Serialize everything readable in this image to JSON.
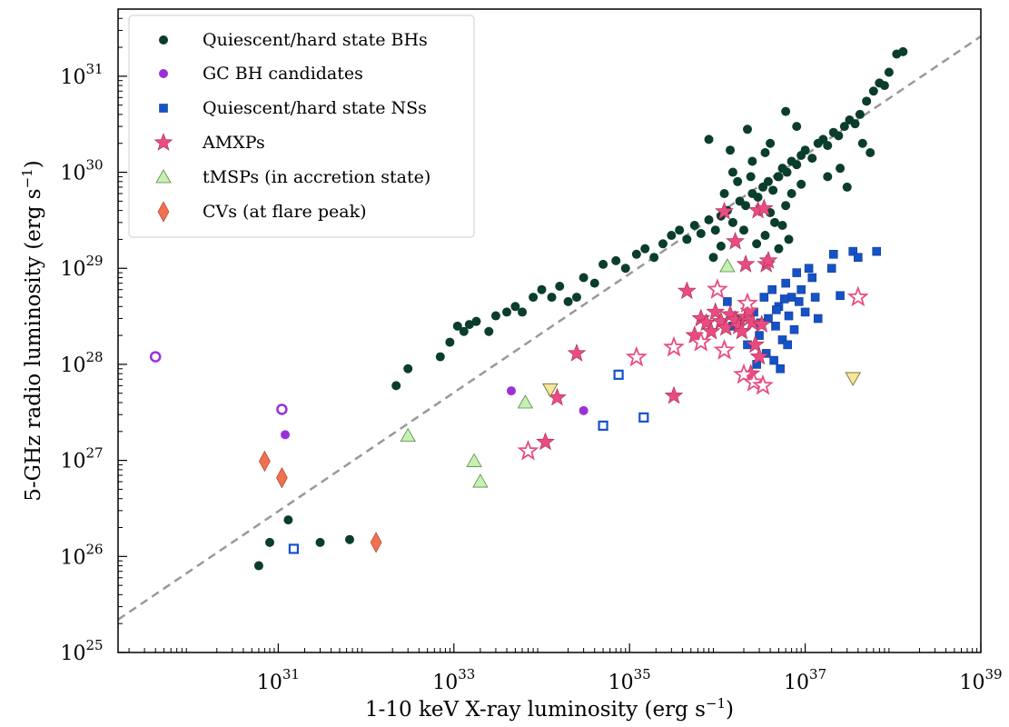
{
  "chart_data": {
    "type": "scatter",
    "title": "",
    "xlabel": "1-10 keV X-ray luminosity (erg s",
    "xlabel_sup": "−1",
    "xlabel_close": ")",
    "ylabel": "5-GHz radio luminosity (erg s",
    "ylabel_sup": "−1",
    "ylabel_close": ")",
    "xscale": "log",
    "yscale": "log",
    "xlim": [
      1.5e+29,
      1e+39
    ],
    "ylim": [
      1e+25,
      5e+31
    ],
    "x_ticks": [
      {
        "value": 1e+31,
        "base": "10",
        "exp": "31"
      },
      {
        "value": 1e+33,
        "base": "10",
        "exp": "33"
      },
      {
        "value": 1e+35,
        "base": "10",
        "exp": "35"
      },
      {
        "value": 1e+37,
        "base": "10",
        "exp": "37"
      },
      {
        "value": 1e+39,
        "base": "10",
        "exp": "39"
      }
    ],
    "y_ticks": [
      {
        "value": 1e+25,
        "base": "10",
        "exp": "25"
      },
      {
        "value": 1e+26,
        "base": "10",
        "exp": "26"
      },
      {
        "value": 1e+27,
        "base": "10",
        "exp": "27"
      },
      {
        "value": 1e+28,
        "base": "10",
        "exp": "28"
      },
      {
        "value": 1e+29,
        "base": "10",
        "exp": "29"
      },
      {
        "value": 1e+30,
        "base": "10",
        "exp": "30"
      },
      {
        "value": 1e+31,
        "base": "10",
        "exp": "31"
      }
    ],
    "grid": false,
    "legend_position": "top-left",
    "reference_line": {
      "style": "dashed",
      "color": "#999999",
      "points": [
        [
          1.5e+29,
          2.2e+25
        ],
        [
          1e+39,
          2.6e+31
        ]
      ]
    },
    "series": [
      {
        "name": "Quiescent/hard state BHs",
        "marker": "circle",
        "color": "#0b3d2e",
        "points": [
          [
            2.2e+32,
            6e+27
          ],
          [
            3e+32,
            9e+27
          ],
          [
            7e+32,
            1.2e+28
          ],
          [
            9e+32,
            1.7e+28
          ],
          [
            1.1e+33,
            2.5e+28
          ],
          [
            1.3e+33,
            2.2e+28
          ],
          [
            1.5e+33,
            2.6e+28
          ],
          [
            1.8e+33,
            2.8e+28
          ],
          [
            2.5e+33,
            2.2e+28
          ],
          [
            3e+33,
            3.2e+28
          ],
          [
            4e+33,
            3.5e+28
          ],
          [
            5e+33,
            4e+28
          ],
          [
            6e+33,
            3.5e+28
          ],
          [
            8e+33,
            5e+28
          ],
          [
            1e+34,
            6e+28
          ],
          [
            1.3e+34,
            5e+28
          ],
          [
            1.6e+34,
            6.5e+28
          ],
          [
            2e+34,
            4.5e+28
          ],
          [
            2.5e+34,
            5e+28
          ],
          [
            3e+34,
            8e+28
          ],
          [
            4e+34,
            7e+28
          ],
          [
            5e+34,
            1.1e+29
          ],
          [
            7e+34,
            1.2e+29
          ],
          [
            9e+34,
            1e+29
          ],
          [
            1.2e+35,
            1.4e+29
          ],
          [
            1.5e+35,
            1.6e+29
          ],
          [
            1.9e+35,
            1.3e+29
          ],
          [
            2.4e+35,
            1.8e+29
          ],
          [
            3e+35,
            2.2e+29
          ],
          [
            3.7e+35,
            2.5e+29
          ],
          [
            4.5e+35,
            2e+29
          ],
          [
            5.5e+35,
            2.8e+29
          ],
          [
            6.5e+35,
            2.3e+29
          ],
          [
            8e+35,
            3.2e+29
          ],
          [
            9.5e+35,
            2.5e+29
          ],
          [
            1.1e+36,
            3.5e+29
          ],
          [
            1.3e+36,
            4e+29
          ],
          [
            1.5e+36,
            3e+29
          ],
          [
            1.8e+36,
            5e+29
          ],
          [
            2.1e+36,
            4.5e+29
          ],
          [
            2.5e+36,
            6e+29
          ],
          [
            2.9e+36,
            5.5e+29
          ],
          [
            3.3e+36,
            7e+29
          ],
          [
            3.8e+36,
            8e+29
          ],
          [
            4.3e+36,
            6.5e+29
          ],
          [
            4.9e+36,
            9e+29
          ],
          [
            5.5e+36,
            1.1e+30
          ],
          [
            6.2e+36,
            1e+30
          ],
          [
            7e+36,
            1.3e+30
          ],
          [
            8e+36,
            1.2e+30
          ],
          [
            9e+36,
            1.5e+30
          ],
          [
            1e+37,
            1.7e+30
          ],
          [
            1.2e+37,
            1.4e+30
          ],
          [
            1.4e+37,
            2e+30
          ],
          [
            1.6e+37,
            2.2e+30
          ],
          [
            1.8e+37,
            1.9e+30
          ],
          [
            2.1e+37,
            2.6e+30
          ],
          [
            2.4e+37,
            2.4e+30
          ],
          [
            2.8e+37,
            3e+30
          ],
          [
            3.2e+37,
            3.5e+30
          ],
          [
            3.7e+37,
            3.2e+30
          ],
          [
            4.2e+37,
            4e+30
          ],
          [
            5e+37,
            5.5e+30
          ],
          [
            6e+37,
            7e+30
          ],
          [
            7e+37,
            8.5e+30
          ],
          [
            8e+37,
            8e+30
          ],
          [
            9e+37,
            1.1e+31
          ],
          [
            1.1e+38,
            1.7e+31
          ],
          [
            1.3e+38,
            1.8e+31
          ],
          [
            8e+35,
            2.2e+30
          ],
          [
            1.4e+36,
            1.7e+30
          ],
          [
            2.2e+36,
            2.8e+30
          ],
          [
            3.5e+36,
            1.6e+30
          ],
          [
            6e+36,
            4.3e+30
          ],
          [
            8e+36,
            3e+30
          ],
          [
            1.5e+36,
            1e+30
          ],
          [
            2.5e+36,
            1.3e+30
          ],
          [
            4e+36,
            2e+30
          ],
          [
            5e+36,
            9e+29
          ],
          [
            7e+36,
            6e+29
          ],
          [
            9e+36,
            7.5e+29
          ],
          [
            3e+36,
            4e+29
          ],
          [
            4.5e+36,
            3e+29
          ],
          [
            6e+36,
            4.5e+29
          ],
          [
            2e+36,
            2.5e+29
          ],
          [
            2.8e+36,
            1.8e+29
          ],
          [
            3.5e+36,
            2.2e+29
          ],
          [
            5e+36,
            1.6e+29
          ],
          [
            6.5e+36,
            2e+29
          ],
          [
            1.8e+37,
            9e+29
          ],
          [
            2.5e+37,
            1.1e+30
          ],
          [
            3e+37,
            7e+29
          ],
          [
            4.5e+37,
            2e+30
          ],
          [
            5.5e+37,
            1.6e+30
          ],
          [
            1.2e+36,
            6e+29
          ],
          [
            1.7e+36,
            8e+29
          ],
          [
            2.4e+36,
            9e+29
          ],
          [
            9e+35,
            1.3e+29
          ],
          [
            1.1e+36,
            1.7e+29
          ],
          [
            5.5e+36,
            2.8e+29
          ],
          [
            4e+36,
            3.8e+29
          ],
          [
            3e+31,
            1.4e+26
          ],
          [
            8e+30,
            1.4e+26
          ],
          [
            6.5e+31,
            1.5e+26
          ],
          [
            1.3e+31,
            2.4e+26
          ],
          [
            6e+30,
            8e+25
          ]
        ]
      },
      {
        "name": "GC BH candidates",
        "marker": "circle",
        "color": "#9b30d9",
        "points": [
          [
            4.5e+33,
            5.3e+27
          ],
          [
            3e+34,
            3.3e+27
          ],
          [
            1.2e+31,
            1.85e+27
          ]
        ],
        "open_points": [
          [
            4e+29,
            1.2e+28
          ],
          [
            1.1e+31,
            3.4e+27
          ]
        ]
      },
      {
        "name": "Quiescent/hard state NSs",
        "marker": "square",
        "color": "#1452c8",
        "points": [
          [
            1.3e+36,
            4.5e+28
          ],
          [
            1.5e+36,
            2.5e+28
          ],
          [
            1.8e+36,
            3e+28
          ],
          [
            2.2e+36,
            1.6e+28
          ],
          [
            2.6e+36,
            3.5e+28
          ],
          [
            3e+36,
            2e+28
          ],
          [
            3.4e+36,
            5e+28
          ],
          [
            3.8e+36,
            3e+28
          ],
          [
            4.2e+36,
            6e+28
          ],
          [
            4.6e+36,
            2.5e+28
          ],
          [
            5e+36,
            4e+28
          ],
          [
            5.5e+36,
            1.8e+28
          ],
          [
            6e+36,
            7e+28
          ],
          [
            6.5e+36,
            3.2e+28
          ],
          [
            7e+36,
            5e+28
          ],
          [
            7.5e+36,
            2.3e+28
          ],
          [
            8e+36,
            9e+28
          ],
          [
            8.5e+36,
            4.5e+28
          ],
          [
            9e+36,
            6e+28
          ],
          [
            1e+37,
            3.5e+28
          ],
          [
            1.1e+37,
            1e+29
          ],
          [
            1.2e+37,
            8e+28
          ],
          [
            1.3e+37,
            5e+28
          ],
          [
            1.4e+37,
            3e+28
          ],
          [
            2e+37,
            1e+29
          ],
          [
            2.1e+37,
            1.4e+29
          ],
          [
            2.5e+37,
            5.2e+28
          ],
          [
            3.5e+37,
            1.5e+29
          ],
          [
            4e+37,
            1.3e+29
          ],
          [
            6.5e+37,
            1.5e+29
          ],
          [
            2.8e+36,
            1e+28
          ],
          [
            3.6e+36,
            1.3e+28
          ],
          [
            4.4e+36,
            1.1e+28
          ],
          [
            5.2e+36,
            9e+27
          ],
          [
            6.3e+36,
            1.6e+28
          ],
          [
            3.1e+36,
            2.7e+28
          ],
          [
            4.7e+36,
            3.7e+28
          ],
          [
            5.8e+36,
            4.8e+28
          ]
        ],
        "open_points": [
          [
            1.5e+31,
            1.2e+26
          ],
          [
            5e+34,
            2.3e+27
          ],
          [
            7.5e+34,
            7.8e+27
          ],
          [
            1.45e+35,
            2.8e+27
          ]
        ]
      },
      {
        "name": "AMXPs",
        "marker": "star",
        "color": "#ea4b82",
        "points": [
          [
            2.5e+34,
            1.3e+28
          ],
          [
            1.5e+34,
            4.5e+27
          ],
          [
            1.1e+34,
            1.55e+27
          ],
          [
            3.2e+35,
            4.7e+27
          ],
          [
            4.5e+35,
            5.8e+28
          ],
          [
            5.5e+35,
            2e+28
          ],
          [
            6.5e+35,
            3e+28
          ],
          [
            7.5e+35,
            2.7e+28
          ],
          [
            8.5e+35,
            2.2e+28
          ],
          [
            9.5e+35,
            3.5e+28
          ],
          [
            1.1e+36,
            2.8e+28
          ],
          [
            1.25e+36,
            2.4e+28
          ],
          [
            1.4e+36,
            3.3e+28
          ],
          [
            1.6e+36,
            2.9e+28
          ],
          [
            1.75e+36,
            2.5e+28
          ],
          [
            1.9e+36,
            2.2e+28
          ],
          [
            2.1e+36,
            3.1e+28
          ],
          [
            2.3e+36,
            3.6e+28
          ],
          [
            2.5e+36,
            2.7e+28
          ],
          [
            2.7e+36,
            1.6e+28
          ],
          [
            3e+36,
            1.2e+28
          ],
          [
            3.2e+36,
            2.6e+28
          ],
          [
            3.6e+36,
            1.1e+29
          ],
          [
            1.6e+36,
            1.9e+29
          ],
          [
            2.1e+36,
            1.1e+29
          ],
          [
            2.9e+36,
            4e+29
          ],
          [
            3.4e+36,
            4.2e+29
          ],
          [
            1.2e+36,
            3.9e+29
          ],
          [
            3.8e+36,
            1.2e+29
          ],
          [
            2.4e+36,
            8e+27
          ]
        ],
        "open_points": [
          [
            7e+33,
            1.25e+27
          ],
          [
            1.2e+35,
            1.18e+28
          ],
          [
            3.2e+35,
            1.5e+28
          ],
          [
            6.5e+35,
            1.7e+28
          ],
          [
            2e+36,
            7.8e+27
          ],
          [
            2.6e+36,
            6.5e+27
          ],
          [
            3.3e+36,
            6e+27
          ],
          [
            4e+37,
            5e+28
          ],
          [
            2.2e+36,
            4.3e+28
          ],
          [
            1.2e+36,
            1.4e+28
          ],
          [
            1e+36,
            6e+28
          ]
        ]
      },
      {
        "name": "tMSPs (in accretion state)",
        "marker": "triangle",
        "color": "#c6f0b4",
        "points": [
          [
            3e+32,
            1.8e+27
          ],
          [
            1.7e+33,
            9.8e+26
          ],
          [
            2e+33,
            6e+26
          ],
          [
            6.5e+33,
            4e+27
          ],
          [
            1.3e+36,
            1.05e+29
          ]
        ]
      },
      {
        "name": "CVs (at flare peak)",
        "marker": "diamond",
        "color": "#f07050",
        "points": [
          [
            7e+30,
            9.8e+26
          ],
          [
            1.1e+31,
            6.6e+26
          ],
          [
            1.3e+32,
            1.4e+26
          ]
        ]
      }
    ],
    "upper_limit_series": [
      {
        "name": "",
        "marker": "triangle-down",
        "color": "#f3e7a0",
        "open_points": [
          [
            1.25e+34,
            5.5e+27
          ],
          [
            3.5e+37,
            7.2e+27
          ]
        ]
      }
    ]
  }
}
